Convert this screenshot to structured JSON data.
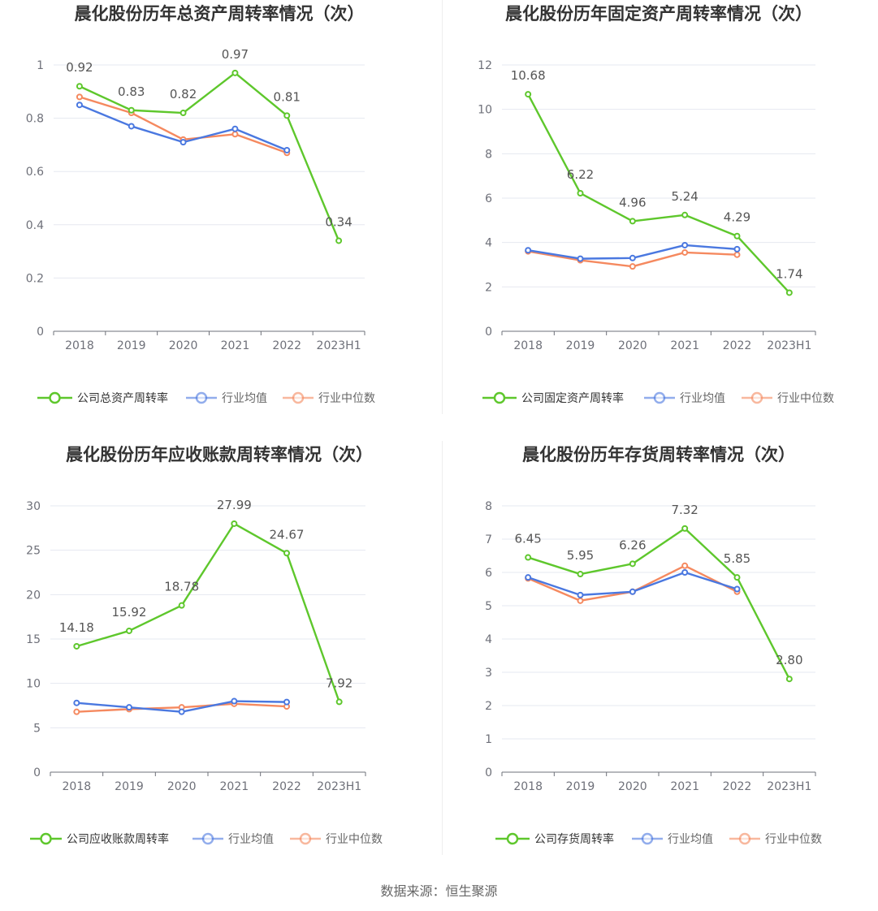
{
  "colors": {
    "company": "#5ec72c",
    "avg": "#4a78e0",
    "median": "#f5895f",
    "grid": "#e6e8f0",
    "axis": "#6e7079"
  },
  "legend_labels": {
    "avg": "行业均值",
    "median": "行业中位数"
  },
  "footer": "数据来源：恒生聚源",
  "chart_data": [
    {
      "type": "line",
      "title": "晨化股份历年总资产周转率情况（次）",
      "categories": [
        "2018",
        "2019",
        "2020",
        "2021",
        "2022",
        "2023H1"
      ],
      "ylim": [
        0,
        1
      ],
      "yticks": [
        0,
        0.2,
        0.4,
        0.6,
        0.8,
        1
      ],
      "ytick_labels": [
        "0",
        "0.2",
        "0.4",
        "0.6",
        "0.8",
        "1"
      ],
      "series": [
        {
          "key": "company",
          "name": "公司总资产周转率",
          "values": [
            0.92,
            0.83,
            0.82,
            0.97,
            0.81,
            0.34
          ],
          "labels": [
            "0.92",
            "0.83",
            "0.82",
            "0.97",
            "0.81",
            "0.34"
          ]
        },
        {
          "key": "avg",
          "name": "行业均值",
          "values": [
            0.85,
            0.77,
            0.71,
            0.76,
            0.68,
            null
          ]
        },
        {
          "key": "median",
          "name": "行业中位数",
          "values": [
            0.88,
            0.82,
            0.72,
            0.74,
            0.67,
            null
          ]
        }
      ]
    },
    {
      "type": "line",
      "title": "晨化股份历年固定资产周转率情况（次）",
      "categories": [
        "2018",
        "2019",
        "2020",
        "2021",
        "2022",
        "2023H1"
      ],
      "ylim": [
        0,
        12
      ],
      "yticks": [
        0,
        2,
        4,
        6,
        8,
        10,
        12
      ],
      "ytick_labels": [
        "0",
        "2",
        "4",
        "6",
        "8",
        "10",
        "12"
      ],
      "series": [
        {
          "key": "company",
          "name": "公司固定资产周转率",
          "values": [
            10.68,
            6.22,
            4.96,
            5.24,
            4.29,
            1.74
          ],
          "labels": [
            "10.68",
            "6.22",
            "4.96",
            "5.24",
            "4.29",
            "1.74"
          ]
        },
        {
          "key": "avg",
          "name": "行业均值",
          "values": [
            3.65,
            3.27,
            3.3,
            3.88,
            3.7,
            null
          ]
        },
        {
          "key": "median",
          "name": "行业中位数",
          "values": [
            3.6,
            3.2,
            2.92,
            3.55,
            3.45,
            null
          ]
        }
      ]
    },
    {
      "type": "line",
      "title": "晨化股份历年应收账款周转率情况（次）",
      "categories": [
        "2018",
        "2019",
        "2020",
        "2021",
        "2022",
        "2023H1"
      ],
      "ylim": [
        0,
        30
      ],
      "yticks": [
        0,
        5,
        10,
        15,
        20,
        25,
        30
      ],
      "ytick_labels": [
        "0",
        "5",
        "10",
        "15",
        "20",
        "25",
        "30"
      ],
      "series": [
        {
          "key": "company",
          "name": "公司应收账款周转率",
          "values": [
            14.18,
            15.92,
            18.78,
            27.99,
            24.67,
            7.92
          ],
          "labels": [
            "14.18",
            "15.92",
            "18.78",
            "27.99",
            "24.67",
            "7.92"
          ]
        },
        {
          "key": "avg",
          "name": "行业均值",
          "values": [
            7.8,
            7.3,
            6.8,
            8.0,
            7.9,
            null
          ]
        },
        {
          "key": "median",
          "name": "行业中位数",
          "values": [
            6.8,
            7.1,
            7.3,
            7.7,
            7.4,
            null
          ]
        }
      ]
    },
    {
      "type": "line",
      "title": "晨化股份历年存货周转率情况（次）",
      "categories": [
        "2018",
        "2019",
        "2020",
        "2021",
        "2022",
        "2023H1"
      ],
      "ylim": [
        0,
        8
      ],
      "yticks": [
        0,
        1,
        2,
        3,
        4,
        5,
        6,
        7,
        8
      ],
      "ytick_labels": [
        "0",
        "1",
        "2",
        "3",
        "4",
        "5",
        "6",
        "7",
        "8"
      ],
      "series": [
        {
          "key": "company",
          "name": "公司存货周转率",
          "values": [
            6.45,
            5.95,
            6.26,
            7.32,
            5.85,
            2.8
          ],
          "labels": [
            "6.45",
            "5.95",
            "6.26",
            "7.32",
            "5.85",
            "2.80"
          ]
        },
        {
          "key": "avg",
          "name": "行业均值",
          "values": [
            5.85,
            5.32,
            5.42,
            6.0,
            5.5,
            null
          ]
        },
        {
          "key": "median",
          "name": "行业中位数",
          "values": [
            5.82,
            5.15,
            5.42,
            6.2,
            5.42,
            null
          ]
        }
      ]
    }
  ]
}
